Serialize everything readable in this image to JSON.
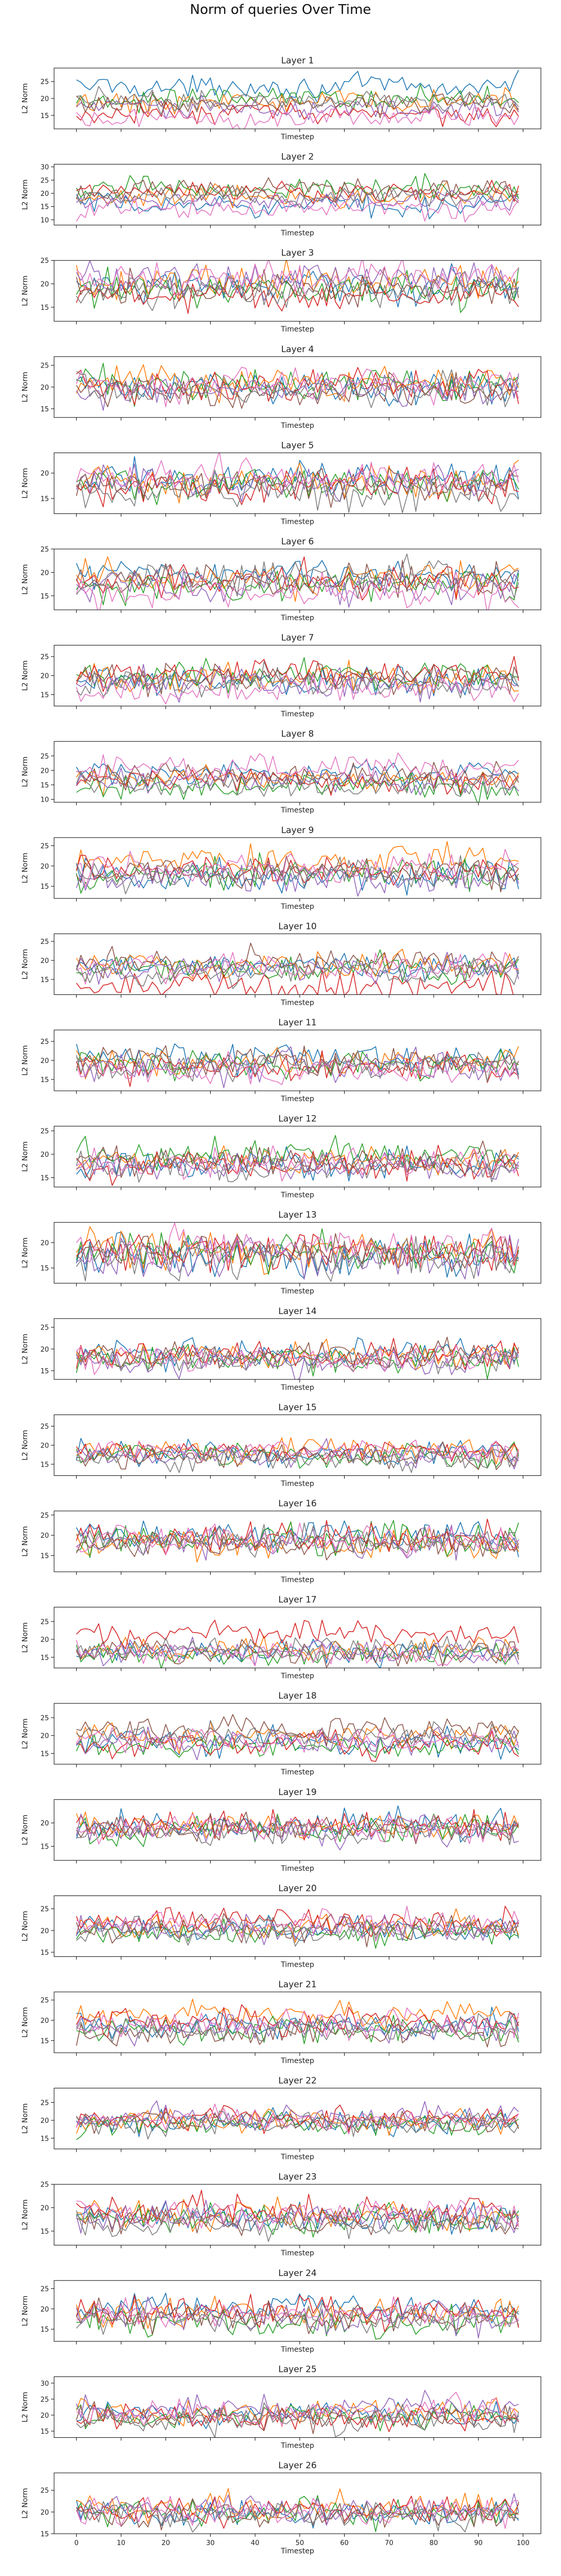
{
  "figure": {
    "title": "Norm of queries Over Time"
  },
  "chart_data": {
    "type": "line",
    "layout": "26 vertically stacked subplots sharing the x axis; x tick labels only on the bottom subplot",
    "grid": false,
    "legend": "none",
    "xlabel": "Timestep",
    "ylabel": "L2 Norm",
    "x": {
      "start": 0,
      "end": 99,
      "step": 1
    },
    "xlim": [
      -5,
      104
    ],
    "xticks": [
      "0",
      "10",
      "20",
      "30",
      "40",
      "50",
      "60",
      "70",
      "80",
      "90",
      "100"
    ],
    "series_colors": [
      "#1f77b4",
      "#ff7f0e",
      "#2ca02c",
      "#d62728",
      "#9467bd",
      "#8c564b",
      "#e377c2",
      "#7f7f7f"
    ],
    "subplots": [
      {
        "title": "Layer 1",
        "ylim": [
          11,
          29
        ],
        "yticks": [
          "15",
          "20",
          "25"
        ],
        "series_means": [
          23.5,
          19.0,
          20.0,
          15.5,
          17.0,
          18.5,
          14.5,
          19.5
        ],
        "amplitude": 1.6
      },
      {
        "title": "Layer 2",
        "ylim": [
          8,
          31
        ],
        "yticks": [
          "10",
          "15",
          "20",
          "25",
          "30"
        ],
        "series_means": [
          15.5,
          19.0,
          22.0,
          20.5,
          17.0,
          21.0,
          14.0,
          18.5
        ],
        "amplitude": 2.0
      },
      {
        "title": "Layer 3",
        "ylim": [
          12,
          25
        ],
        "yticks": [
          "15",
          "20",
          "25"
        ],
        "series_means": [
          19.5,
          20.5,
          19.0,
          17.5,
          21.0,
          19.0,
          21.5,
          18.5
        ],
        "amplitude": 1.7
      },
      {
        "title": "Layer 4",
        "ylim": [
          13,
          27
        ],
        "yticks": [
          "15",
          "20",
          "25"
        ],
        "series_means": [
          20.0,
          21.0,
          20.5,
          20.0,
          19.5,
          19.0,
          20.5,
          19.5
        ],
        "amplitude": 1.8
      },
      {
        "title": "Layer 5",
        "ylim": [
          12,
          24
        ],
        "yticks": [
          "15",
          "20"
        ],
        "series_means": [
          19.0,
          18.5,
          18.0,
          17.5,
          18.5,
          18.0,
          19.5,
          16.0
        ],
        "amplitude": 1.6
      },
      {
        "title": "Layer 6",
        "ylim": [
          12,
          25
        ],
        "yticks": [
          "15",
          "20",
          "25"
        ],
        "series_means": [
          19.5,
          18.5,
          17.5,
          18.5,
          17.0,
          18.0,
          15.5,
          19.0
        ],
        "amplitude": 1.7
      },
      {
        "title": "Layer 7",
        "ylim": [
          12,
          28
        ],
        "yticks": [
          "15",
          "20",
          "25"
        ],
        "series_means": [
          18.5,
          19.5,
          20.0,
          20.5,
          18.0,
          19.5,
          16.0,
          18.0
        ],
        "amplitude": 1.8
      },
      {
        "title": "Layer 8",
        "ylim": [
          9,
          30
        ],
        "yticks": [
          "10",
          "15",
          "20",
          "25"
        ],
        "series_means": [
          19.0,
          17.5,
          14.5,
          16.5,
          16.0,
          18.5,
          21.0,
          15.0
        ],
        "amplitude": 2.1
      },
      {
        "title": "Layer 9",
        "ylim": [
          12,
          27
        ],
        "yticks": [
          "15",
          "20",
          "25"
        ],
        "series_means": [
          17.5,
          21.5,
          18.0,
          19.0,
          17.0,
          18.5,
          19.5,
          18.0
        ],
        "amplitude": 1.8
      },
      {
        "title": "Layer 10",
        "ylim": [
          11,
          27
        ],
        "yticks": [
          "15",
          "20",
          "25"
        ],
        "series_means": [
          18.5,
          19.0,
          17.5,
          13.0,
          18.0,
          19.5,
          18.0,
          17.0
        ],
        "amplitude": 1.7
      },
      {
        "title": "Layer 11",
        "ylim": [
          12,
          28
        ],
        "yticks": [
          "15",
          "20",
          "25"
        ],
        "series_means": [
          20.5,
          19.5,
          19.0,
          18.0,
          18.5,
          20.0,
          17.0,
          19.0
        ],
        "amplitude": 1.8
      },
      {
        "title": "Layer 12",
        "ylim": [
          13,
          26
        ],
        "yticks": [
          "15",
          "20",
          "25"
        ],
        "series_means": [
          18.0,
          18.5,
          20.0,
          17.5,
          17.0,
          18.5,
          18.0,
          17.5
        ],
        "amplitude": 1.5
      },
      {
        "title": "Layer 13",
        "ylim": [
          12,
          24
        ],
        "yticks": [
          "15",
          "20"
        ],
        "series_means": [
          17.5,
          18.5,
          18.0,
          18.5,
          17.0,
          18.0,
          19.5,
          17.0
        ],
        "amplitude": 1.8
      },
      {
        "title": "Layer 14",
        "ylim": [
          13,
          27
        ],
        "yticks": [
          "15",
          "20",
          "25"
        ],
        "series_means": [
          19.0,
          18.5,
          17.5,
          18.5,
          17.0,
          18.5,
          18.0,
          17.5
        ],
        "amplitude": 1.5
      },
      {
        "title": "Layer 15",
        "ylim": [
          12,
          28
        ],
        "yticks": [
          "15",
          "20",
          "25"
        ],
        "series_means": [
          18.0,
          19.0,
          17.5,
          18.5,
          17.5,
          17.0,
          18.5,
          16.5
        ],
        "amplitude": 1.5
      },
      {
        "title": "Layer 16",
        "ylim": [
          11,
          26
        ],
        "yticks": [
          "15",
          "20",
          "25"
        ],
        "series_means": [
          20.0,
          18.0,
          19.0,
          19.5,
          18.0,
          17.5,
          19.0,
          18.5
        ],
        "amplitude": 1.8
      },
      {
        "title": "Layer 17",
        "ylim": [
          12,
          29
        ],
        "yticks": [
          "15",
          "20",
          "25"
        ],
        "series_means": [
          16.5,
          17.0,
          15.5,
          21.5,
          16.5,
          16.0,
          16.0,
          17.5
        ],
        "amplitude": 1.6
      },
      {
        "title": "Layer 18",
        "ylim": [
          12,
          29
        ],
        "yticks": [
          "15",
          "20",
          "25"
        ],
        "series_means": [
          18.0,
          19.5,
          17.0,
          17.5,
          18.0,
          21.5,
          19.0,
          20.0
        ],
        "amplitude": 1.7
      },
      {
        "title": "Layer 19",
        "ylim": [
          12,
          25
        ],
        "yticks": [
          "15",
          "20"
        ],
        "series_means": [
          19.5,
          19.0,
          18.5,
          19.5,
          18.5,
          19.0,
          19.0,
          18.0
        ],
        "amplitude": 1.5
      },
      {
        "title": "Layer 20",
        "ylim": [
          14,
          28
        ],
        "yticks": [
          "15",
          "20",
          "25"
        ],
        "series_means": [
          20.5,
          21.0,
          19.5,
          22.0,
          20.5,
          20.5,
          21.5,
          20.0
        ],
        "amplitude": 1.5
      },
      {
        "title": "Layer 21",
        "ylim": [
          12,
          27
        ],
        "yticks": [
          "15",
          "20",
          "25"
        ],
        "series_means": [
          19.0,
          21.5,
          17.5,
          19.5,
          18.0,
          17.0,
          19.0,
          18.0
        ],
        "amplitude": 1.6
      },
      {
        "title": "Layer 22",
        "ylim": [
          12,
          29
        ],
        "yticks": [
          "15",
          "20",
          "25"
        ],
        "series_means": [
          19.5,
          20.0,
          19.0,
          20.5,
          21.0,
          19.5,
          20.0,
          19.0
        ],
        "amplitude": 1.6
      },
      {
        "title": "Layer 23",
        "ylim": [
          12,
          25
        ],
        "yticks": [
          "15",
          "20",
          "25"
        ],
        "series_means": [
          18.0,
          18.5,
          17.5,
          19.5,
          18.0,
          17.0,
          18.5,
          16.5
        ],
        "amplitude": 1.5
      },
      {
        "title": "Layer 24",
        "ylim": [
          12,
          27
        ],
        "yticks": [
          "15",
          "20",
          "25"
        ],
        "series_means": [
          20.5,
          19.0,
          16.5,
          19.5,
          18.0,
          18.0,
          19.0,
          17.5
        ],
        "amplitude": 1.7
      },
      {
        "title": "Layer 25",
        "ylim": [
          13,
          32
        ],
        "yticks": [
          "15",
          "20",
          "25",
          "30"
        ],
        "series_means": [
          20.0,
          21.0,
          19.5,
          19.5,
          22.0,
          19.0,
          21.5,
          18.5
        ],
        "amplitude": 2.0
      },
      {
        "title": "Layer 26",
        "ylim": [
          15,
          29
        ],
        "yticks": [
          "15",
          "20",
          "25"
        ],
        "series_means": [
          20.0,
          21.0,
          20.0,
          20.5,
          20.5,
          19.5,
          20.0,
          19.5
        ],
        "amplitude": 1.5
      }
    ]
  }
}
